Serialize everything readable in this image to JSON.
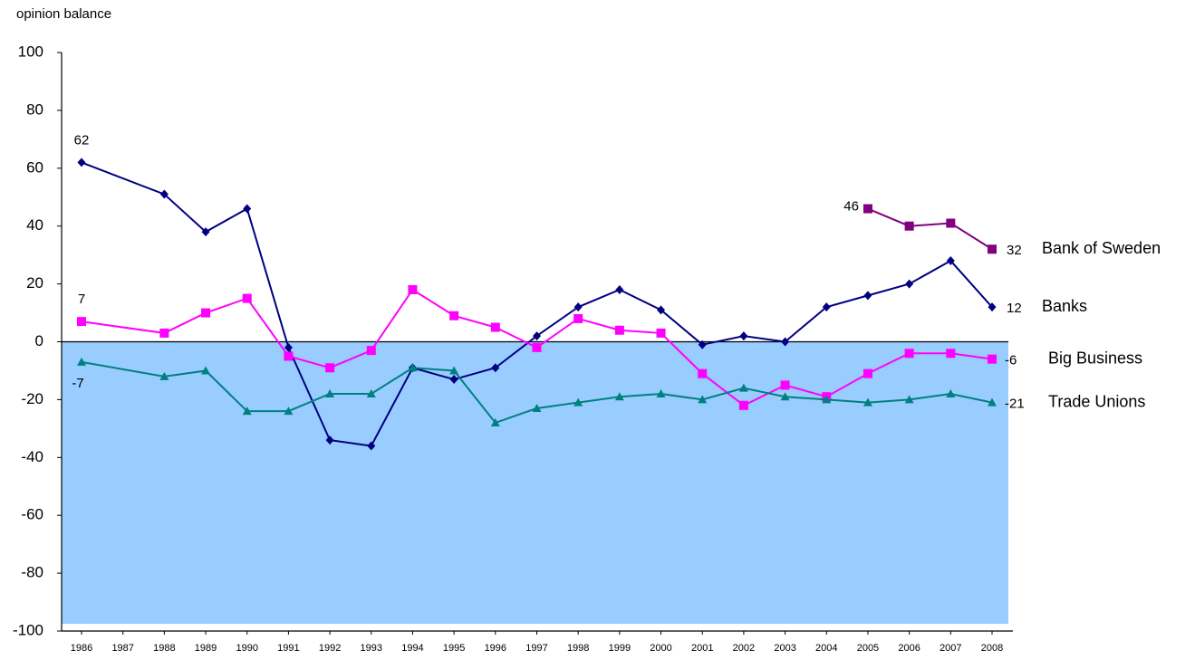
{
  "chart_data": {
    "type": "line",
    "y_label": "opinion balance",
    "x": [
      1986,
      1988,
      1989,
      1990,
      1991,
      1992,
      1993,
      1994,
      1995,
      1996,
      1997,
      1998,
      1999,
      2000,
      2001,
      2002,
      2003,
      2004,
      2005,
      2006,
      2007,
      2008
    ],
    "xlim": [
      1986,
      2008
    ],
    "xticks": [
      1986,
      1987,
      1988,
      1989,
      1990,
      1991,
      1992,
      1993,
      1994,
      1995,
      1996,
      1997,
      1998,
      1999,
      2000,
      2001,
      2002,
      2003,
      2004,
      2005,
      2006,
      2007,
      2008
    ],
    "ylim": [
      -100,
      100
    ],
    "yticks": [
      -100,
      -80,
      -60,
      -40,
      -20,
      0,
      20,
      40,
      60,
      80,
      100
    ],
    "series": [
      {
        "name": "Bank of Sweden",
        "color": "#800080",
        "marker": "square",
        "values": [
          null,
          null,
          null,
          null,
          null,
          null,
          null,
          null,
          null,
          null,
          null,
          null,
          null,
          null,
          null,
          null,
          null,
          null,
          46,
          40,
          41,
          32
        ]
      },
      {
        "name": "Banks",
        "color": "#000080",
        "marker": "diamond",
        "values": [
          62,
          51,
          38,
          46,
          -2,
          -34,
          -36,
          -9,
          -13,
          -9,
          2,
          12,
          18,
          11,
          -1,
          2,
          0,
          12,
          16,
          20,
          28,
          12
        ]
      },
      {
        "name": "Big Business",
        "color": "#ff00ff",
        "marker": "square",
        "values": [
          7,
          3,
          10,
          15,
          -5,
          -9,
          -3,
          18,
          9,
          5,
          -2,
          8,
          4,
          3,
          -11,
          -22,
          -15,
          -19,
          -11,
          -4,
          -4,
          -6
        ]
      },
      {
        "name": "Trade Unions",
        "color": "#008080",
        "marker": "triangle",
        "values": [
          -7,
          -12,
          -10,
          -24,
          -24,
          -18,
          -18,
          -9,
          -10,
          -28,
          -23,
          -21,
          -19,
          -18,
          -20,
          -16,
          -19,
          -20,
          -21,
          -20,
          -18,
          -21
        ]
      }
    ]
  }
}
